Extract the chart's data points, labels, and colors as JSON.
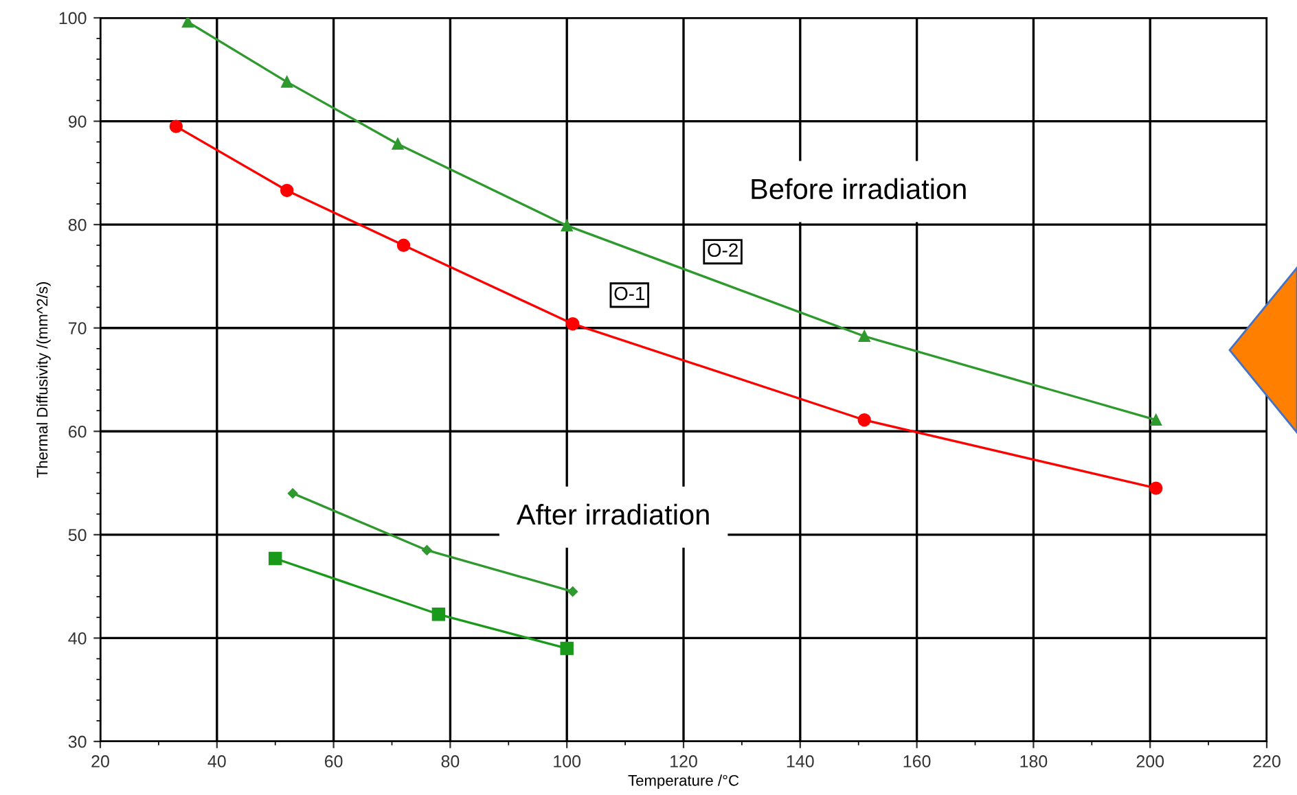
{
  "chart_data": {
    "type": "line",
    "xlabel": "Temperature /°C",
    "ylabel": "Thermal Diffusivity /(mm^2/s)",
    "xlim": [
      20,
      220
    ],
    "xticks": [
      20,
      40,
      60,
      80,
      100,
      120,
      140,
      160,
      180,
      200,
      220
    ],
    "ylim": [
      30,
      100
    ],
    "yticks": [
      30,
      40,
      50,
      60,
      70,
      80,
      90,
      100
    ],
    "grid": true,
    "legend": false,
    "series": [
      {
        "name": "O-2",
        "color": "#2e9a2e",
        "marker": "triangle",
        "x": [
          35,
          52,
          71,
          100,
          151,
          201
        ],
        "values": [
          99.6,
          93.8,
          87.8,
          79.9,
          69.2,
          61.1
        ]
      },
      {
        "name": "O-1",
        "color": "#ff0000",
        "marker": "circle",
        "x": [
          33,
          52,
          72,
          101,
          151,
          201
        ],
        "values": [
          89.5,
          83.3,
          78,
          70.4,
          61.1,
          54.5
        ]
      },
      {
        "color": "#2e9a2e",
        "marker": "diamond",
        "x": [
          53,
          76,
          101
        ],
        "values": [
          54,
          48.5,
          44.5
        ]
      },
      {
        "color": "#1a9a1a",
        "marker": "square",
        "x": [
          50,
          78,
          100
        ],
        "values": [
          47.7,
          42.3,
          39
        ]
      }
    ],
    "annotations": [
      "Before irradiation",
      "After irradiation"
    ]
  }
}
